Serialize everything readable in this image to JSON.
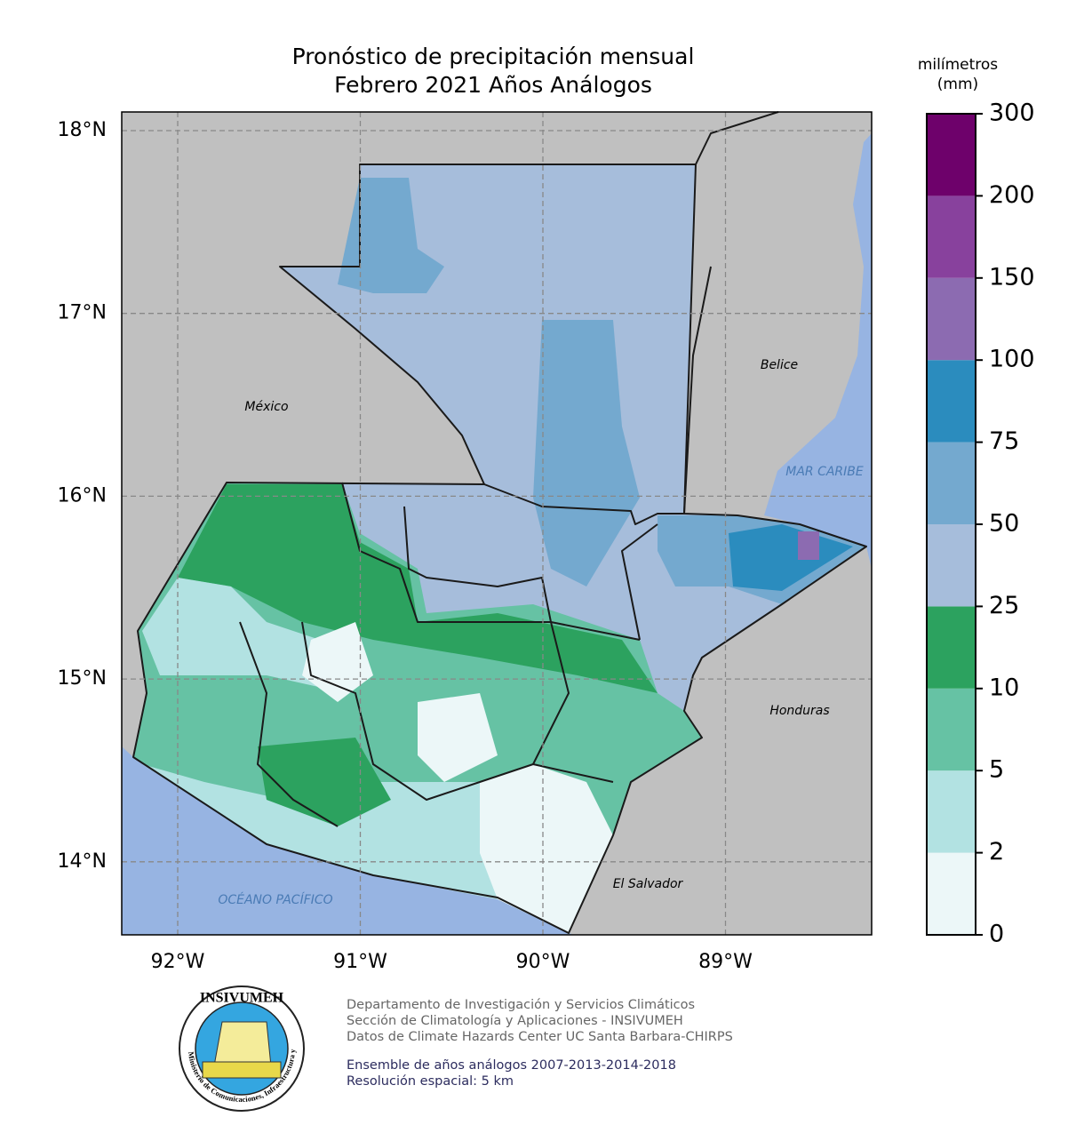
{
  "title": [
    "Pronóstico de precipitación mensual",
    "Febrero 2021  Años Análogos"
  ],
  "colorbar": {
    "label": [
      "milímetros",
      "(mm)"
    ],
    "ticks": [
      0,
      2,
      5,
      10,
      25,
      50,
      75,
      100,
      150,
      200,
      300
    ],
    "colors": [
      "#ecf7f8",
      "#b2e2e2",
      "#66c2a4",
      "#2ca25f",
      "#a6bddb",
      "#74a9cf",
      "#2b8cbe",
      "#8c6bb1",
      "#88419d",
      "#6e016b"
    ]
  },
  "map": {
    "lat_labels": [
      "18°N",
      "17°N",
      "16°N",
      "15°N",
      "14°N"
    ],
    "lon_labels": [
      "92°W",
      "91°W",
      "90°W",
      "89°W"
    ],
    "places": {
      "mexico": "México",
      "belice": "Belice",
      "caribe": "MAR CARIBE",
      "honduras": "Honduras",
      "salvador": "El Salvador",
      "pacifico": "OCÉANO PACÍFICO"
    }
  },
  "footer": {
    "credits": [
      "Departamento de Investigación y Servicios Climáticos",
      "Sección de Climatología y Aplicaciones - INSIVUMEH",
      "Datos de Climate Hazards Center UC Santa Barbara-CHIRPS"
    ],
    "notes": [
      "Ensemble de años análogos 2007-2013-2014-2018",
      "Resolución espacial: 5 km"
    ]
  },
  "logo": {
    "name": "INSIVUMEH",
    "ring": "Ministerio de Comunicaciones, Infraestructura y Vivienda"
  }
}
